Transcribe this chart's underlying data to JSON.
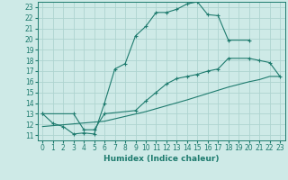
{
  "xlabel": "Humidex (Indice chaleur)",
  "bg_color": "#ceeae7",
  "grid_color": "#aed4d0",
  "line_color": "#1e7b6e",
  "xlim": [
    -0.5,
    23.5
  ],
  "ylim": [
    10.5,
    23.5
  ],
  "xticks": [
    0,
    1,
    2,
    3,
    4,
    5,
    6,
    7,
    8,
    9,
    10,
    11,
    12,
    13,
    14,
    15,
    16,
    17,
    18,
    19,
    20,
    21,
    22,
    23
  ],
  "yticks": [
    11,
    12,
    13,
    14,
    15,
    16,
    17,
    18,
    19,
    20,
    21,
    22,
    23
  ],
  "curve1_x": [
    0,
    1,
    2,
    3,
    4,
    5,
    6,
    7,
    8,
    9,
    10,
    11,
    12,
    13,
    14,
    15,
    16,
    17,
    18,
    20
  ],
  "curve1_y": [
    13.0,
    12.1,
    11.8,
    11.1,
    11.2,
    11.1,
    14.0,
    17.2,
    17.7,
    20.3,
    21.2,
    22.5,
    22.5,
    22.8,
    23.3,
    23.5,
    22.3,
    22.2,
    19.9,
    19.9
  ],
  "curve2_x": [
    0,
    3,
    4,
    5,
    6,
    9,
    10,
    11,
    12,
    13,
    14,
    15,
    16,
    17,
    18,
    20,
    21,
    22,
    23
  ],
  "curve2_y": [
    13.0,
    13.0,
    11.5,
    11.5,
    13.0,
    13.3,
    14.2,
    15.0,
    15.8,
    16.3,
    16.5,
    16.7,
    17.0,
    17.2,
    18.2,
    18.2,
    18.0,
    17.8,
    16.5
  ],
  "curve3_x": [
    0,
    6,
    10,
    14,
    18,
    20,
    21,
    22,
    23
  ],
  "curve3_y": [
    11.8,
    12.3,
    13.2,
    14.3,
    15.5,
    16.0,
    16.2,
    16.5,
    16.5
  ]
}
